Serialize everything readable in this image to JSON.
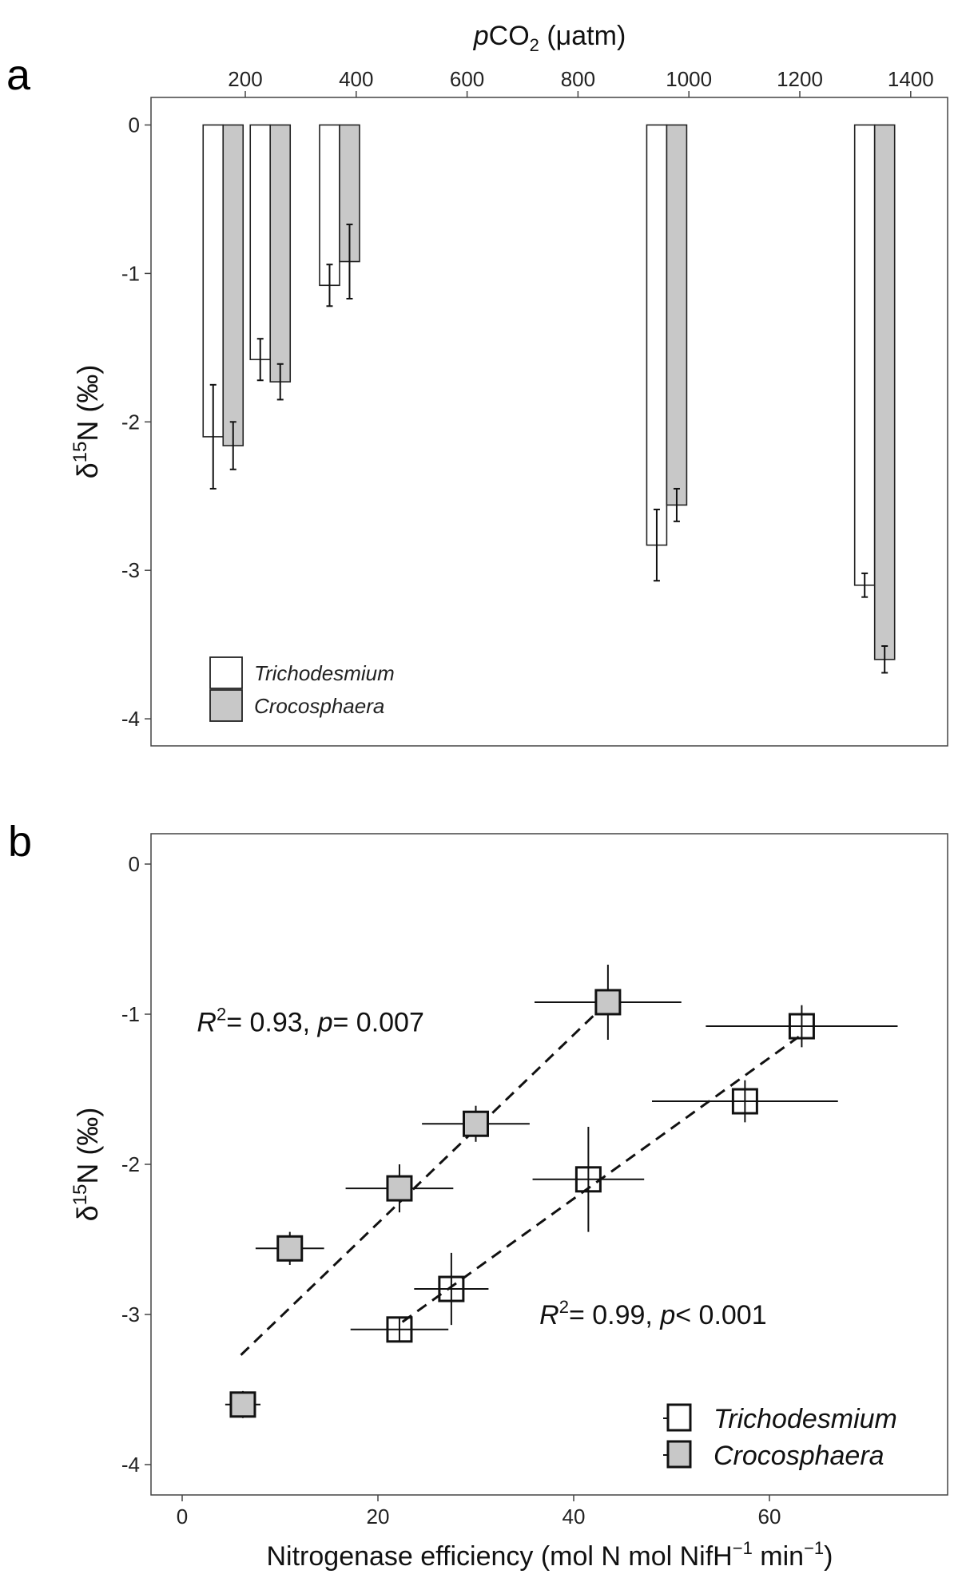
{
  "chart_data": [
    {
      "type": "bar",
      "panel_label": "a",
      "xlabel_italic": "p",
      "xlabel_main": "CO",
      "xlabel_sub": "2",
      "xlabel_unit": " (μatm)",
      "ylabel_delta": "δ",
      "ylabel_sup": "15",
      "ylabel_rest": "N (‰)",
      "xlim": [
        0,
        1450
      ],
      "ylim": [
        -4.2,
        0.2
      ],
      "xticks": [
        200,
        400,
        600,
        800,
        1000,
        1200,
        1400
      ],
      "yticks": [
        0,
        -1,
        -2,
        -3,
        -4
      ],
      "legend_position": "bottom-left",
      "x": [
        160,
        245,
        370,
        960,
        1335
      ],
      "series": [
        {
          "name": "Trichodesmium",
          "color": "#ffffff",
          "values": [
            -2.1,
            -1.58,
            -1.08,
            -2.83,
            -3.1
          ],
          "errors": [
            0.35,
            0.14,
            0.14,
            0.24,
            0.08
          ]
        },
        {
          "name": "Crocosphaera",
          "color": "#c8c8c8",
          "values": [
            -2.16,
            -1.73,
            -0.92,
            -2.56,
            -3.6
          ],
          "errors": [
            0.16,
            0.12,
            0.25,
            0.11,
            0.09
          ]
        }
      ]
    },
    {
      "type": "scatter",
      "panel_label": "b",
      "xlabel": "Nitrogenase efficiency (mol N mol NifH",
      "xlabel_sup1": "−1",
      "xlabel_mid": " min",
      "xlabel_sup2": "−1",
      "xlabel_end": ")",
      "ylabel_delta": "δ",
      "ylabel_sup": "15",
      "ylabel_rest": "N (‰)",
      "xlim": [
        -4,
        75
      ],
      "ylim": [
        -4.2,
        0.2
      ],
      "xticks": [
        0,
        20,
        40,
        60
      ],
      "yticks": [
        0,
        -1,
        -2,
        -3,
        -4
      ],
      "legend_position": "bottom-right",
      "series": [
        {
          "name": "Trichodesmium",
          "color": "#ffffff",
          "points": [
            [
              22.2,
              -3.1,
              5,
              0.08
            ],
            [
              27.5,
              -2.83,
              3.8,
              0.24
            ],
            [
              41.5,
              -2.1,
              5.7,
              0.35
            ],
            [
              57.5,
              -1.58,
              9.5,
              0.14
            ],
            [
              63.3,
              -1.08,
              9.8,
              0.14
            ]
          ],
          "fit": [
            [
              22.5,
              -3.05
            ],
            [
              63,
              -1.15
            ]
          ],
          "annotation": {
            "r2": "0.99",
            "p_op": "<",
            "p": "0.001",
            "x": 36.5,
            "y": -3.0
          }
        },
        {
          "name": "Crocosphaera",
          "color": "#c8c8c8",
          "points": [
            [
              6.2,
              -3.6,
              1.8,
              0.09
            ],
            [
              11,
              -2.56,
              3.5,
              0.11
            ],
            [
              22.2,
              -2.16,
              5.5,
              0.16
            ],
            [
              30,
              -1.73,
              5.5,
              0.12
            ],
            [
              43.5,
              -0.92,
              7.5,
              0.25
            ]
          ],
          "fit": [
            [
              6,
              -3.27
            ],
            [
              42.5,
              -0.98
            ]
          ],
          "annotation": {
            "r2": "0.93",
            "p_op": "=",
            "p": "0.007",
            "x": 1.5,
            "y": -1.05
          }
        }
      ]
    }
  ]
}
